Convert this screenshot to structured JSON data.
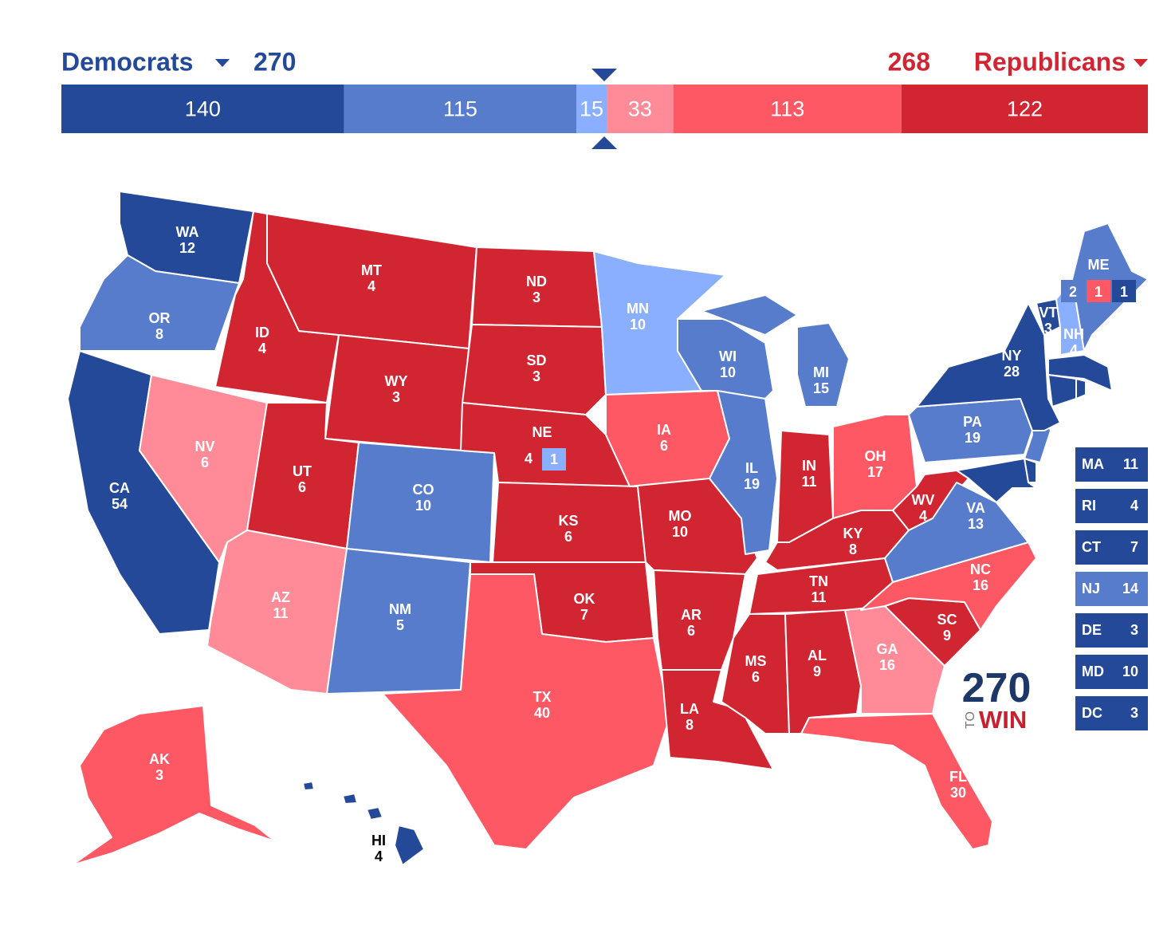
{
  "header": {
    "dem": {
      "name": "Democrats",
      "total": 270
    },
    "rep": {
      "name": "Republicans",
      "total": 268
    }
  },
  "bar": [
    {
      "value": 140,
      "color": "#244999"
    },
    {
      "value": 115,
      "color": "#587ccc"
    },
    {
      "value": 15,
      "color": "#8aafff"
    },
    {
      "value": 33,
      "color": "#ff8b98"
    },
    {
      "value": 113,
      "color": "#ff5865"
    },
    {
      "value": 122,
      "color": "#d22532"
    }
  ],
  "states": [
    {
      "abbr": "WA",
      "votes": 12,
      "color": "#244999"
    },
    {
      "abbr": "OR",
      "votes": 8,
      "color": "#587ccc"
    },
    {
      "abbr": "CA",
      "votes": 54,
      "color": "#244999"
    },
    {
      "abbr": "NV",
      "votes": 6,
      "color": "#ff8b98"
    },
    {
      "abbr": "ID",
      "votes": 4,
      "color": "#d22532"
    },
    {
      "abbr": "MT",
      "votes": 4,
      "color": "#d22532"
    },
    {
      "abbr": "WY",
      "votes": 3,
      "color": "#d22532"
    },
    {
      "abbr": "UT",
      "votes": 6,
      "color": "#d22532"
    },
    {
      "abbr": "AZ",
      "votes": 11,
      "color": "#ff8b98"
    },
    {
      "abbr": "CO",
      "votes": 10,
      "color": "#587ccc"
    },
    {
      "abbr": "NM",
      "votes": 5,
      "color": "#587ccc"
    },
    {
      "abbr": "ND",
      "votes": 3,
      "color": "#d22532"
    },
    {
      "abbr": "SD",
      "votes": 3,
      "color": "#d22532"
    },
    {
      "abbr": "NE",
      "votes": 4,
      "color": "#d22532",
      "districts": [
        {
          "votes": 1,
          "color": "#8aafff"
        }
      ]
    },
    {
      "abbr": "KS",
      "votes": 6,
      "color": "#d22532"
    },
    {
      "abbr": "OK",
      "votes": 7,
      "color": "#d22532"
    },
    {
      "abbr": "TX",
      "votes": 40,
      "color": "#ff5865"
    },
    {
      "abbr": "MN",
      "votes": 10,
      "color": "#8aafff"
    },
    {
      "abbr": "IA",
      "votes": 6,
      "color": "#ff5865"
    },
    {
      "abbr": "MO",
      "votes": 10,
      "color": "#d22532"
    },
    {
      "abbr": "AR",
      "votes": 6,
      "color": "#d22532"
    },
    {
      "abbr": "LA",
      "votes": 8,
      "color": "#d22532"
    },
    {
      "abbr": "WI",
      "votes": 10,
      "color": "#587ccc"
    },
    {
      "abbr": "IL",
      "votes": 19,
      "color": "#587ccc"
    },
    {
      "abbr": "MI",
      "votes": 15,
      "color": "#587ccc"
    },
    {
      "abbr": "IN",
      "votes": 11,
      "color": "#d22532"
    },
    {
      "abbr": "OH",
      "votes": 17,
      "color": "#ff5865"
    },
    {
      "abbr": "KY",
      "votes": 8,
      "color": "#d22532"
    },
    {
      "abbr": "WV",
      "votes": 4,
      "color": "#d22532"
    },
    {
      "abbr": "TN",
      "votes": 11,
      "color": "#d22532"
    },
    {
      "abbr": "MS",
      "votes": 6,
      "color": "#d22532"
    },
    {
      "abbr": "AL",
      "votes": 9,
      "color": "#d22532"
    },
    {
      "abbr": "GA",
      "votes": 16,
      "color": "#ff8b98"
    },
    {
      "abbr": "FL",
      "votes": 30,
      "color": "#ff5865"
    },
    {
      "abbr": "SC",
      "votes": 9,
      "color": "#d22532"
    },
    {
      "abbr": "NC",
      "votes": 16,
      "color": "#ff5865"
    },
    {
      "abbr": "VA",
      "votes": 13,
      "color": "#587ccc"
    },
    {
      "abbr": "PA",
      "votes": 19,
      "color": "#587ccc"
    },
    {
      "abbr": "NY",
      "votes": 28,
      "color": "#244999"
    },
    {
      "abbr": "VT",
      "votes": 3,
      "color": "#244999"
    },
    {
      "abbr": "NH",
      "votes": 4,
      "color": "#8aafff"
    },
    {
      "abbr": "ME",
      "color": "#587ccc",
      "districts": [
        {
          "votes": 2,
          "color": "#587ccc"
        },
        {
          "votes": 1,
          "color": "#ff5865"
        },
        {
          "votes": 1,
          "color": "#244999"
        }
      ]
    },
    {
      "abbr": "AK",
      "votes": 3,
      "color": "#ff5865"
    },
    {
      "abbr": "HI",
      "votes": 4,
      "color": "#244999"
    }
  ],
  "small_states": [
    {
      "abbr": "MA",
      "votes": 11,
      "color": "#244999"
    },
    {
      "abbr": "RI",
      "votes": 4,
      "color": "#244999"
    },
    {
      "abbr": "CT",
      "votes": 7,
      "color": "#244999"
    },
    {
      "abbr": "NJ",
      "votes": 14,
      "color": "#587ccc"
    },
    {
      "abbr": "DE",
      "votes": 3,
      "color": "#244999"
    },
    {
      "abbr": "MD",
      "votes": 10,
      "color": "#244999"
    },
    {
      "abbr": "DC",
      "votes": 3,
      "color": "#244999"
    }
  ],
  "logo": {
    "number": "270",
    "to": "TO",
    "win": "WIN"
  }
}
